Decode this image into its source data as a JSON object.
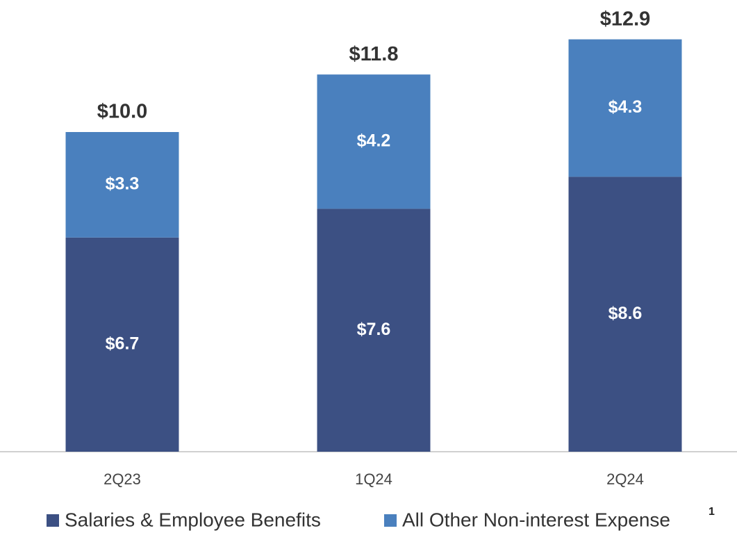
{
  "chart_data": {
    "type": "stacked_bar",
    "categories": [
      "2Q23",
      "1Q24",
      "2Q24"
    ],
    "series": [
      {
        "name": "Salaries & Employee Benefits",
        "color": "#3c5083",
        "values": [
          6.7,
          7.6,
          8.6
        ],
        "value_labels": [
          "$6.7",
          "$7.6",
          "$8.6"
        ]
      },
      {
        "name": "All Other Non-interest Expense",
        "color": "#4a80be",
        "values": [
          3.3,
          4.2,
          4.3
        ],
        "value_labels": [
          "$3.3",
          "$4.2",
          "$4.3"
        ]
      }
    ],
    "totals": [
      10.0,
      11.8,
      12.9
    ],
    "total_labels": [
      "$10.0",
      "$11.8",
      "$12.9"
    ],
    "legend_note": "1",
    "ylim": [
      0,
      14
    ],
    "grid": false,
    "legend": "bottom"
  }
}
